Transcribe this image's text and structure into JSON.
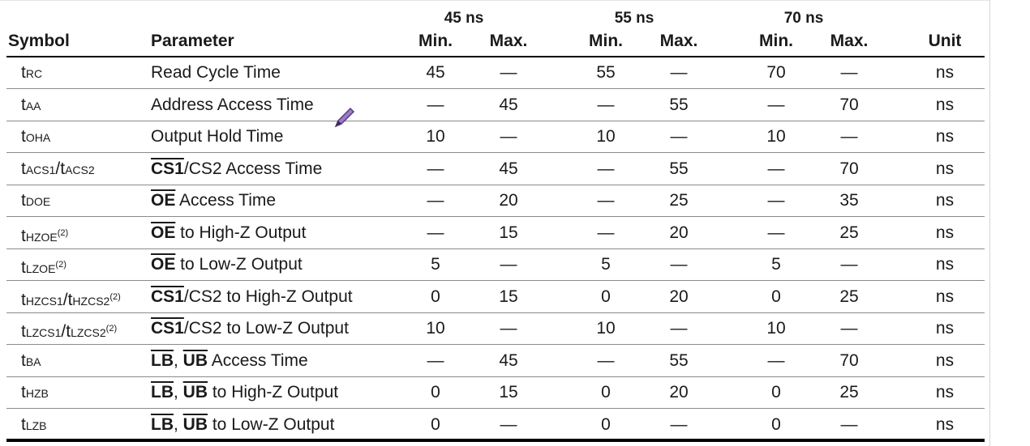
{
  "header": {
    "groups": [
      "45 ns",
      "55 ns",
      "70 ns"
    ],
    "symbol": "Symbol",
    "parameter": "Parameter",
    "min": "Min.",
    "max": "Max.",
    "unit": "Unit"
  },
  "rows": [
    {
      "sym": "t",
      "sub": "RC",
      "param": [
        {
          "t": "Read Cycle Time"
        }
      ],
      "vals": [
        "45",
        "—",
        "55",
        "—",
        "70",
        "—"
      ],
      "unit": "ns"
    },
    {
      "sym": "t",
      "sub": "AA",
      "param": [
        {
          "t": "Address Access Time"
        }
      ],
      "vals": [
        "—",
        "45",
        "—",
        "55",
        "—",
        "70"
      ],
      "unit": "ns"
    },
    {
      "sym": "t",
      "sub": "OHA",
      "param": [
        {
          "t": "Output Hold Time"
        }
      ],
      "vals": [
        "10",
        "—",
        "10",
        "—",
        "10",
        "—"
      ],
      "unit": "ns"
    },
    {
      "sym": "t",
      "sub": "ACS1",
      "sym2": "/t",
      "sub2": "ACS2",
      "param": [
        {
          "t": "CS1",
          "ov": true
        },
        {
          "t": "/CS2 Access Time"
        }
      ],
      "vals": [
        "—",
        "45",
        "—",
        "55",
        "—",
        "70"
      ],
      "unit": "ns"
    },
    {
      "sym": "t",
      "sub": "DOE",
      "param": [
        {
          "t": "OE",
          "ov": true
        },
        {
          "t": " Access Time"
        }
      ],
      "vals": [
        "—",
        "20",
        "—",
        "25",
        "—",
        "35"
      ],
      "unit": "ns"
    },
    {
      "sym": "t",
      "sub": "HZOE",
      "sup": "(2)",
      "param": [
        {
          "t": "OE",
          "ov": true
        },
        {
          "t": " to High-Z Output"
        }
      ],
      "vals": [
        "—",
        "15",
        "—",
        "20",
        "—",
        "25"
      ],
      "unit": "ns"
    },
    {
      "sym": "t",
      "sub": "LZOE",
      "sup": "(2)",
      "param": [
        {
          "t": "OE",
          "ov": true
        },
        {
          "t": " to Low-Z Output"
        }
      ],
      "vals": [
        "5",
        "—",
        "5",
        "—",
        "5",
        "—"
      ],
      "unit": "ns"
    },
    {
      "sym": "t",
      "sub": "HZCS1",
      "sym2": "/t",
      "sub2": "HZCS2",
      "sup": "(2)",
      "param": [
        {
          "t": "CS1",
          "ov": true
        },
        {
          "t": "/CS2 to High-Z Output"
        }
      ],
      "vals": [
        "0",
        "15",
        "0",
        "20",
        "0",
        "25"
      ],
      "unit": "ns"
    },
    {
      "sym": "t",
      "sub": "LZCS1",
      "sym2": "/t",
      "sub2": "LZCS2",
      "sup": "(2)",
      "param": [
        {
          "t": "CS1",
          "ov": true
        },
        {
          "t": "/CS2 to Low-Z Output"
        }
      ],
      "vals": [
        "10",
        "—",
        "10",
        "—",
        "10",
        "—"
      ],
      "unit": "ns"
    },
    {
      "sym": "t",
      "sub": "BA",
      "param": [
        {
          "t": "LB",
          "ov": true
        },
        {
          "t": ", "
        },
        {
          "t": "UB",
          "ov": true
        },
        {
          "t": " Access Time"
        }
      ],
      "vals": [
        "—",
        "45",
        "—",
        "55",
        "—",
        "70"
      ],
      "unit": "ns"
    },
    {
      "sym": "t",
      "sub": "HZB",
      "param": [
        {
          "t": "LB",
          "ov": true
        },
        {
          "t": ", "
        },
        {
          "t": "UB",
          "ov": true
        },
        {
          "t": " to High-Z Output"
        }
      ],
      "vals": [
        "0",
        "15",
        "0",
        "20",
        "0",
        "25"
      ],
      "unit": "ns"
    },
    {
      "sym": "t",
      "sub": "LZB",
      "param": [
        {
          "t": "LB",
          "ov": true
        },
        {
          "t": ", "
        },
        {
          "t": "UB",
          "ov": true
        },
        {
          "t": " to Low-Z Output"
        }
      ],
      "vals": [
        "0",
        "—",
        "0",
        "—",
        "0",
        "—"
      ],
      "unit": "ns"
    }
  ],
  "icons": {
    "annotation": "pen-cursor-icon"
  },
  "colors": {
    "text": "#1a1a1a",
    "rule": "#000000",
    "row_divider": "#8a8a8a",
    "pen": "#7a4fa8"
  }
}
